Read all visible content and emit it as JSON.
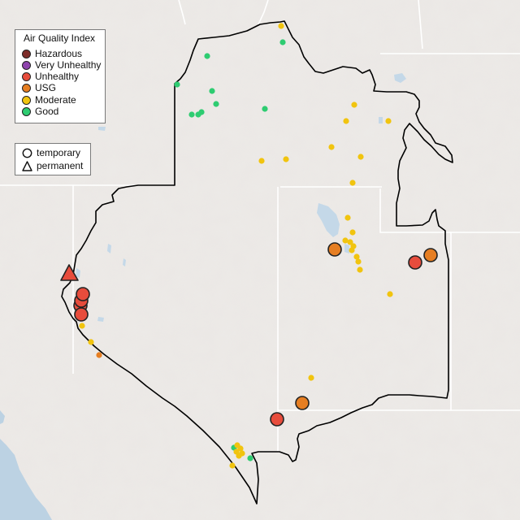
{
  "legend": {
    "title": "Air Quality Index",
    "categories": [
      {
        "label": "Hazardous",
        "color": "#7e2d2a"
      },
      {
        "label": "Very Unhealthy",
        "color": "#8e44ad"
      },
      {
        "label": "Unhealthy",
        "color": "#e74c3c"
      },
      {
        "label": "USG",
        "color": "#e67e22"
      },
      {
        "label": "Moderate",
        "color": "#f1c40f"
      },
      {
        "label": "Good",
        "color": "#2ecc71"
      }
    ],
    "types": [
      {
        "label": "temporary",
        "shape": "circle"
      },
      {
        "label": "permanent",
        "shape": "triangle"
      }
    ]
  },
  "colors": {
    "land": "#e9e6e3",
    "water": "#bcd2e3",
    "boundary": "#000000",
    "border": "#ffffff"
  }
}
